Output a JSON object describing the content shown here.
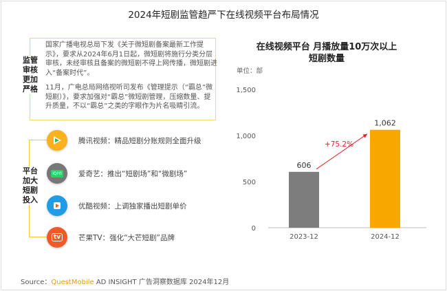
{
  "title": "2024年短剧监管趋严下在线视频平台布局情况",
  "regulation": {
    "label": "监管审核更加严格",
    "paragraphs": [
      "国家广播电视总局下发《关于微短剧备案最新工作提示》，要求从2024年6月1日起，微短剧将施行分类分层审核，未经审核且备案的微短剧不得上网传播，微短剧进入“备案时代”。",
      "11月，广电总局网络视听司发布《管理提示（“霸总”微短剧）》，要求加强对“霸总”微短剧管理，压缩数量、提升质量，不以“霸总”之类的字眼作为片名吸睛引流。"
    ]
  },
  "platforms": {
    "label": "平台加大短剧投入",
    "items": [
      {
        "icon": "tencent-video-logo",
        "color": "#f9b21d",
        "text": "腾讯视频：精品短剧分账规则全面升级"
      },
      {
        "icon": "iqiyi-logo",
        "color": "#777777",
        "logo_text": "iQIYI",
        "text": "爱奇艺：推出“短剧场”和“微剧场”"
      },
      {
        "icon": "youku-logo",
        "color": "#1f9ce5",
        "text": "优酷视频：上调独家播出短剧单价"
      },
      {
        "icon": "mango-tv-logo",
        "color": "#f05a28",
        "logo_text": "tv",
        "text": "芒果TV：强化“大芒短剧”品牌"
      }
    ]
  },
  "chart_data": {
    "type": "bar",
    "title": "在线视频平台 月播放量10万次以上短剧数量",
    "title_lines": [
      "在线视频平台 月播放量10万次以上",
      "短剧数量"
    ],
    "unit": "单位：部",
    "categories": [
      "2023-12",
      "2024-12"
    ],
    "values": [
      606,
      1062
    ],
    "value_labels": [
      "606",
      "1,062"
    ],
    "colors": [
      "#7d7d7d",
      "#f7a700"
    ],
    "ylim": [
      0,
      1500
    ],
    "yticks": [
      0,
      500,
      1000,
      1500
    ],
    "ytick_labels": [
      "0",
      "500",
      "1,000",
      "1,500"
    ],
    "annotation": "+75.2%",
    "annotation_color": "#e8212e",
    "grid": false
  },
  "source": {
    "prefix": "Source：",
    "brand": "QuestMobile",
    "rest": " AD INSIGHT 广告洞察数据库 2024年12月"
  }
}
